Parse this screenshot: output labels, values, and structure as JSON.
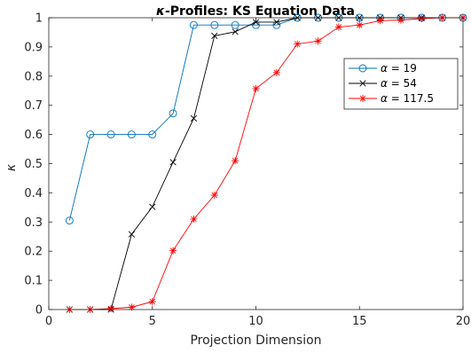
{
  "chart_data": {
    "type": "line",
    "title_symbol": "κ",
    "title_rest": "-Profiles: KS Equation Data",
    "xlabel": "Projection Dimension",
    "ylabel": "κ",
    "xlim": [
      0,
      20
    ],
    "ylim": [
      0,
      1
    ],
    "x_ticks": [
      "0",
      "5",
      "10",
      "15",
      "20"
    ],
    "y_ticks": [
      "0",
      "0.1",
      "0.2",
      "0.3",
      "0.4",
      "0.5",
      "0.6",
      "0.7",
      "0.8",
      "0.9",
      "1"
    ],
    "grid": false,
    "legend_position": "top-right",
    "x": [
      1,
      2,
      3,
      4,
      5,
      6,
      7,
      8,
      9,
      10,
      11,
      12,
      13,
      14,
      15,
      16,
      17,
      18,
      19,
      20
    ],
    "series": [
      {
        "symbol": "α",
        "value_text": "= 19",
        "color": "#0072BD",
        "marker": "circle",
        "values": [
          0.305,
          0.6,
          0.6,
          0.6,
          0.6,
          0.672,
          0.975,
          0.975,
          0.975,
          0.975,
          0.975,
          1.0,
          1.0,
          1.0,
          1.0,
          1.0,
          1.0,
          1.0,
          1.0,
          1.0
        ]
      },
      {
        "symbol": "α",
        "value_text": "= 54",
        "color": "#000000",
        "marker": "x",
        "values": [
          0.0,
          0.0,
          0.0,
          0.258,
          0.352,
          0.505,
          0.655,
          0.938,
          0.952,
          0.985,
          0.985,
          1.0,
          1.0,
          1.0,
          1.0,
          1.0,
          1.0,
          1.0,
          1.0,
          1.0
        ]
      },
      {
        "symbol": "α",
        "value_text": "= 117.5",
        "color": "#FF0000",
        "marker": "star",
        "values": [
          0.0,
          0.0,
          0.003,
          0.008,
          0.027,
          0.202,
          0.31,
          0.392,
          0.51,
          0.757,
          0.812,
          0.91,
          0.92,
          0.968,
          0.975,
          0.99,
          0.992,
          0.997,
          1.0,
          1.0
        ]
      }
    ]
  }
}
